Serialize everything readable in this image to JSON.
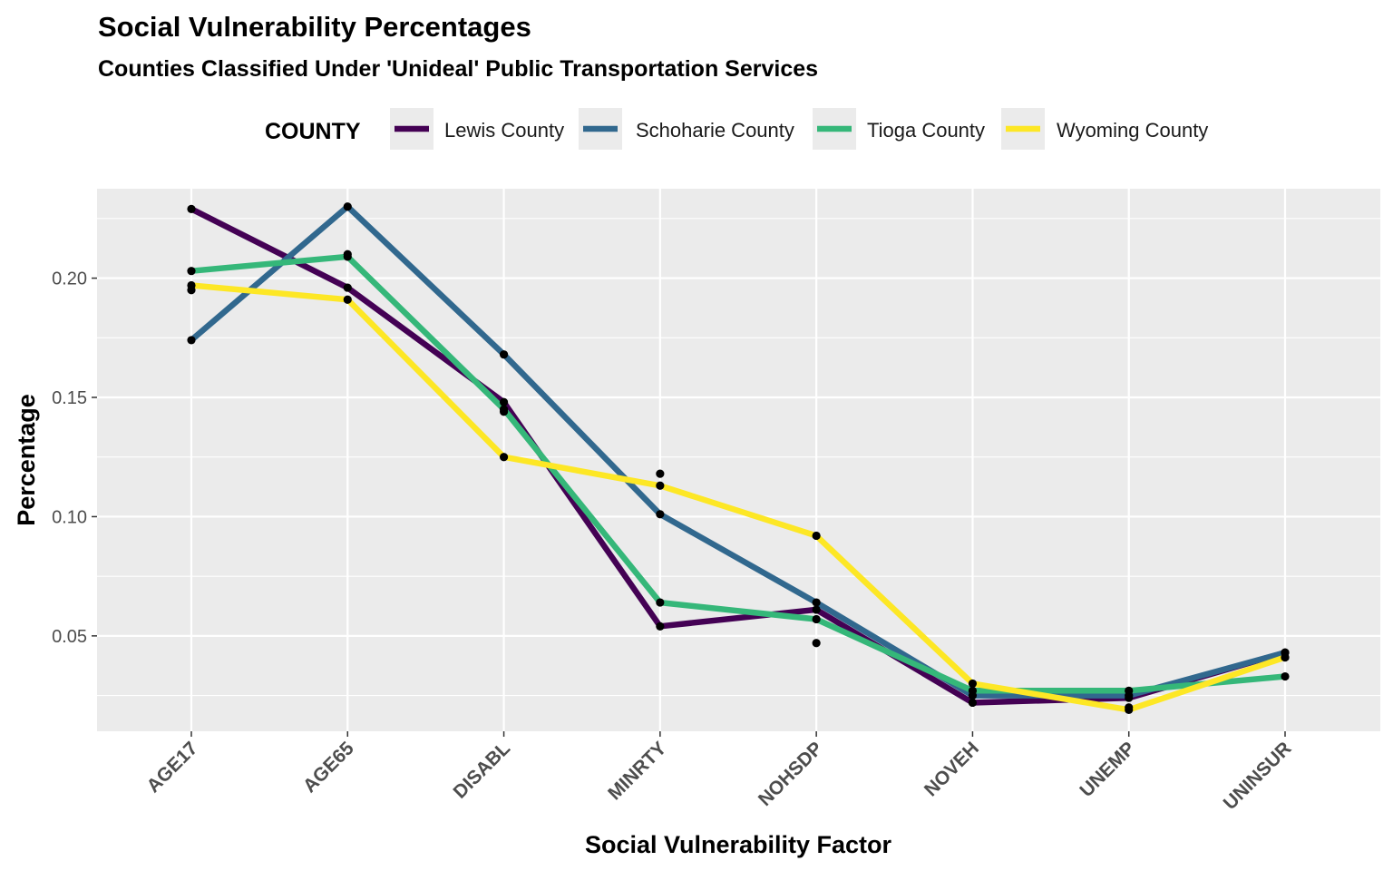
{
  "chart_data": {
    "type": "line",
    "title": "Social Vulnerability Percentages",
    "subtitle": "Counties Classified Under 'Unideal' Public Transportation Services",
    "xlabel": "Social Vulnerability Factor",
    "ylabel": "Percentage",
    "legend_title": "COUNTY",
    "legend_position": "top",
    "grid": true,
    "categories": [
      "AGE17",
      "AGE65",
      "DISABL",
      "MINRTY",
      "NOHSDP",
      "NOVEH",
      "UNEMP",
      "UNINSUR"
    ],
    "y_ticks": [
      0.05,
      0.1,
      0.15,
      0.2
    ],
    "y_tick_labels": [
      "0.05",
      "0.10",
      "0.15",
      "0.20"
    ],
    "ylim": [
      0.01,
      0.2375
    ],
    "series": [
      {
        "name": "Lewis County",
        "color": "#440154",
        "values": [
          0.229,
          0.196,
          0.148,
          0.054,
          0.061,
          0.022,
          0.024,
          0.043
        ]
      },
      {
        "name": "Schoharie County",
        "color": "#31688e",
        "values": [
          0.174,
          0.23,
          0.168,
          0.101,
          0.064,
          0.025,
          0.025,
          0.043
        ]
      },
      {
        "name": "Tioga County",
        "color": "#35b779",
        "values": [
          0.203,
          0.209,
          0.145,
          0.064,
          0.057,
          0.027,
          0.027,
          0.033
        ]
      },
      {
        "name": "Wyoming County",
        "color": "#fde725",
        "values": [
          0.197,
          0.191,
          0.125,
          0.113,
          0.092,
          0.03,
          0.019,
          0.041
        ]
      }
    ],
    "extra_points": [
      {
        "category": "AGE17",
        "value": 0.195
      },
      {
        "category": "AGE65",
        "value": 0.21
      },
      {
        "category": "DISABL",
        "value": 0.144
      },
      {
        "category": "MINRTY",
        "value": 0.118
      },
      {
        "category": "NOHSDP",
        "value": 0.047
      },
      {
        "category": "UNEMP",
        "value": 0.02
      },
      {
        "category": "UNINSUR",
        "value": 0.041
      }
    ]
  }
}
